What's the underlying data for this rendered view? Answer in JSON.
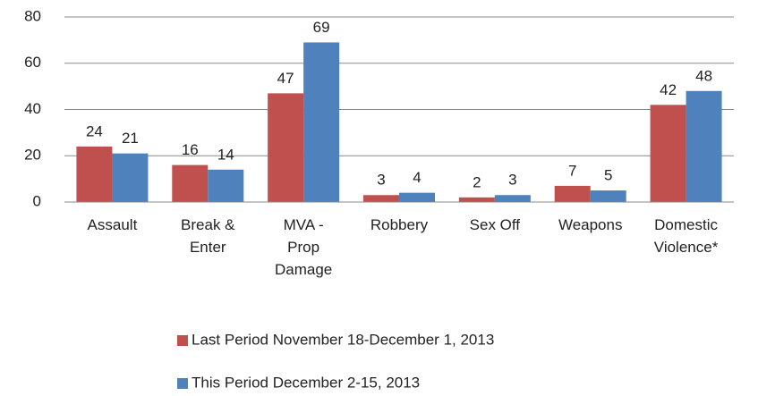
{
  "chart_data": {
    "type": "bar",
    "categories": [
      "Assault",
      "Break & Enter",
      "MVA - Prop Damage",
      "Robbery",
      "Sex Off",
      "Weapons",
      "Domestic Violence*"
    ],
    "series": [
      {
        "name": "Last Period November 18-December 1, 2013",
        "color": "#c0504d",
        "values": [
          24,
          16,
          47,
          3,
          2,
          7,
          42
        ]
      },
      {
        "name": "This Period December 2-15, 2013",
        "color": "#4f81bd",
        "values": [
          21,
          14,
          69,
          4,
          3,
          5,
          48
        ]
      }
    ],
    "ylim": [
      0,
      80
    ],
    "yticks": [
      0,
      20,
      40,
      60,
      80
    ],
    "grid": true,
    "legend": "bottom"
  }
}
